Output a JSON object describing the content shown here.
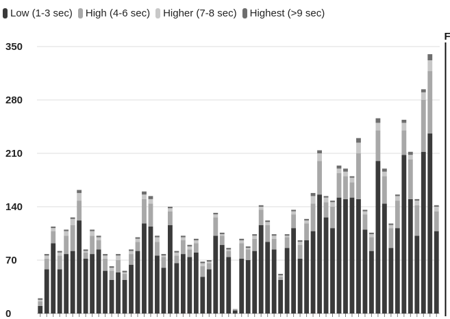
{
  "chart_data": {
    "type": "bar",
    "stacked": true,
    "title": "",
    "xlabel": "",
    "ylabel": "",
    "ylim": [
      0,
      350
    ],
    "yticks": [
      0,
      70,
      140,
      210,
      280,
      350
    ],
    "grid": true,
    "legend_position": "top",
    "annotation": {
      "text": "Fall",
      "at_category_index": 63
    },
    "series": [
      {
        "name": "Low (1-3 sec)",
        "color": "#3a3a3a",
        "values": [
          10,
          58,
          92,
          58,
          78,
          82,
          122,
          72,
          78,
          84,
          56,
          44,
          54,
          44,
          64,
          82,
          118,
          114,
          76,
          60,
          116,
          66,
          78,
          74,
          80,
          48,
          58,
          102,
          90,
          74,
          4,
          72,
          70,
          82,
          116,
          94,
          84,
          44,
          86,
          112,
          72,
          96,
          108,
          156,
          126,
          112,
          152,
          150,
          152,
          150,
          110,
          82,
          200,
          144,
          86,
          112,
          208,
          150,
          102,
          212,
          236,
          108
        ]
      },
      {
        "name": "High (4-6 sec)",
        "color": "#a8a8a8",
        "values": [
          6,
          14,
          16,
          18,
          24,
          34,
          26,
          8,
          24,
          12,
          16,
          12,
          16,
          8,
          14,
          12,
          32,
          30,
          18,
          14,
          18,
          10,
          18,
          10,
          12,
          14,
          8,
          24,
          12,
          8,
          2,
          20,
          14,
          16,
          20,
          22,
          14,
          4,
          14,
          18,
          18,
          22,
          36,
          44,
          20,
          28,
          32,
          30,
          20,
          60,
          20,
          18,
          40,
          36,
          26,
          36,
          32,
          52,
          40,
          68,
          82,
          26
        ]
      },
      {
        "name": "Higher (7-8 sec)",
        "color": "#c8c8c8",
        "values": [
          2,
          4,
          4,
          4,
          6,
          8,
          10,
          2,
          6,
          4,
          4,
          4,
          6,
          2,
          4,
          4,
          6,
          6,
          6,
          2,
          4,
          4,
          4,
          4,
          4,
          4,
          2,
          4,
          2,
          2,
          0,
          4,
          2,
          4,
          4,
          4,
          4,
          2,
          2,
          4,
          4,
          4,
          10,
          10,
          6,
          6,
          6,
          6,
          6,
          14,
          4,
          4,
          10,
          6,
          4,
          6,
          10,
          6,
          6,
          10,
          14,
          6
        ]
      },
      {
        "name": "Highest (>9 sec)",
        "color": "#6e6e6e",
        "values": [
          2,
          2,
          2,
          2,
          2,
          2,
          4,
          2,
          2,
          2,
          2,
          2,
          2,
          2,
          2,
          2,
          4,
          4,
          2,
          2,
          2,
          2,
          2,
          2,
          2,
          2,
          2,
          2,
          2,
          2,
          0,
          2,
          2,
          2,
          2,
          2,
          2,
          2,
          2,
          2,
          2,
          2,
          4,
          4,
          2,
          2,
          4,
          4,
          2,
          6,
          2,
          2,
          6,
          4,
          2,
          2,
          4,
          4,
          2,
          4,
          8,
          2
        ]
      }
    ]
  }
}
